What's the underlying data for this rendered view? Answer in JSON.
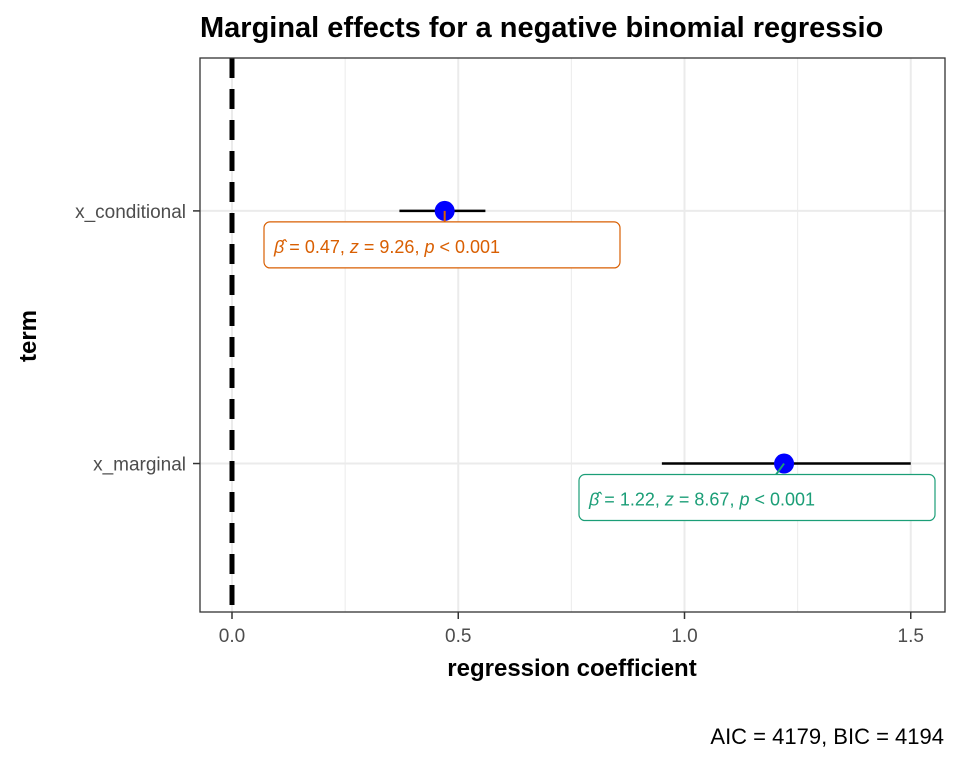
{
  "chart_data": {
    "type": "scatter",
    "title": "Marginal effects for a negative binomial regressio",
    "xlabel": "regression coefficient",
    "ylabel": "term",
    "xlim": [
      -0.07,
      1.57
    ],
    "x_ticks": [
      "0.0",
      "0.5",
      "1.0",
      "1.5"
    ],
    "x_tick_values": [
      0,
      0.5,
      1.0,
      1.5
    ],
    "grid": true,
    "reference_line": {
      "x": 0,
      "style": "dashed"
    },
    "point_color": "#0000ff",
    "terms": [
      {
        "term": "x_conditional",
        "estimate": 0.47,
        "conf_low": 0.37,
        "conf_high": 0.56,
        "label": {
          "beta": "β̂",
          "eq1": "=",
          "estimate": "0.47",
          "z_symbol": "z",
          "eq2": "=",
          "z_value": "9.26",
          "p_symbol": "p",
          "lt": "<",
          "p_value": "0.001"
        },
        "label_color": "#d95f02"
      },
      {
        "term": "x_marginal",
        "estimate": 1.22,
        "conf_low": 0.95,
        "conf_high": 1.5,
        "label": {
          "beta": "β̂",
          "eq1": "=",
          "estimate": "1.22",
          "z_symbol": "z",
          "eq2": "=",
          "z_value": "8.67",
          "p_symbol": "p",
          "lt": "<",
          "p_value": "0.001"
        },
        "label_color": "#1b9e77"
      }
    ],
    "caption": "AIC = 4179, BIC = 4194"
  }
}
